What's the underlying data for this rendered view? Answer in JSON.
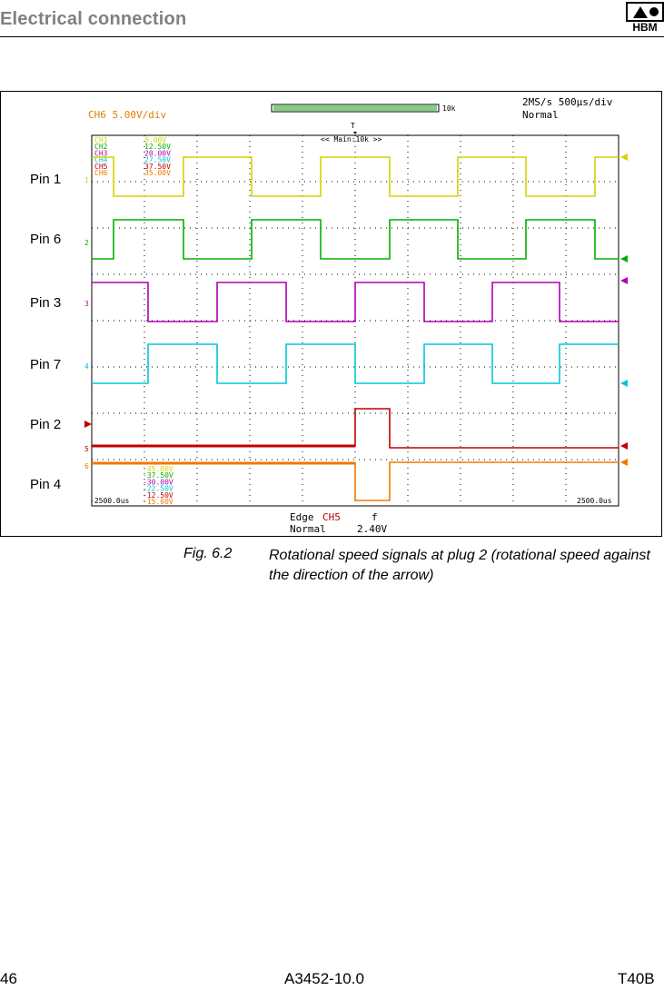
{
  "header": {
    "title": "Electrical connection",
    "logo_text": "HBM"
  },
  "pins": [
    "Pin 1",
    "Pin 6",
    "Pin 3",
    "Pin 7",
    "Pin 2",
    "Pin 4"
  ],
  "scope": {
    "channel_scale": "CH6   5.00V/div",
    "zoom_label": "10k",
    "sample_rate": "2MS/s  500µs/div",
    "mode": "Normal",
    "trigger_marker": "T",
    "main_window": "<< Main:10k >>",
    "offsets_top": [
      {
        "ch": "CH1",
        "v": "5.00V",
        "color": "#d4d400"
      },
      {
        "ch": "CH2",
        "v": "12.50V",
        "color": "#00b000"
      },
      {
        "ch": "CH3",
        "v": "20.00V",
        "color": "#b000b0"
      },
      {
        "ch": "CH4",
        "v": "27.50V",
        "color": "#00c8d8"
      },
      {
        "ch": "CH5",
        "v": "37.50V",
        "color": "#c00000"
      },
      {
        "ch": "CH6",
        "v": "35.00V",
        "color": "#f07800"
      }
    ],
    "offsets_bottom": [
      {
        "v": "-45.00V",
        "color": "#d4d400"
      },
      {
        "v": "-37.50V",
        "color": "#00b000"
      },
      {
        "v": "-30.00V",
        "color": "#b000b0"
      },
      {
        "v": "-22.50V",
        "color": "#00c8d8"
      },
      {
        "v": "-12.50V",
        "color": "#c00000"
      },
      {
        "v": "-15.00V",
        "color": "#f07800"
      }
    ],
    "time_left": "-2500.0us",
    "time_right": "2500.0us",
    "trigger_type": "Edge",
    "trigger_channel": "CH5",
    "trigger_slope": "f",
    "trigger_mode": "Normal",
    "trigger_level": "2.40V",
    "ground_markers": [
      "1",
      "2",
      "3",
      "4",
      "5",
      "6"
    ]
  },
  "caption": {
    "number": "Fig. 6.2",
    "text": "Rotational speed signals at plug 2 (rotational speed against the direction of the arrow)"
  },
  "footer": {
    "page": "46",
    "doc_number": "A3452-10.0",
    "product": "T40B"
  },
  "colors": {
    "ch1": "#d4d400",
    "ch2": "#00b000",
    "ch3": "#b000b0",
    "ch4": "#00c8d8",
    "ch5": "#c00000",
    "ch6": "#f07800",
    "header_gray": "#808080"
  }
}
